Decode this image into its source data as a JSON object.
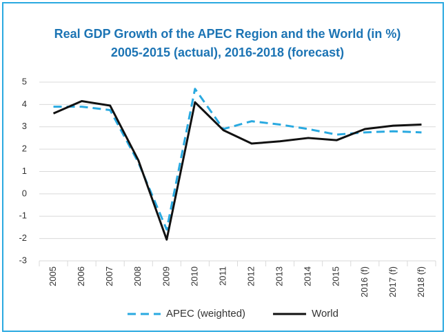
{
  "chart_data": {
    "type": "line",
    "title": "Real GDP Growth of the APEC Region and the World (in %)",
    "subtitle": "2005-2015 (actual), 2016-2018 (forecast)",
    "categories": [
      "2005",
      "2006",
      "2007",
      "2008",
      "2009",
      "2010",
      "2011",
      "2012",
      "2013",
      "2014",
      "2015",
      "2016 (f)",
      "2017 (f)",
      "2018 (f)"
    ],
    "series": [
      {
        "name": "APEC (weighted)",
        "color": "#29a9e0",
        "dashed": true,
        "values": [
          3.9,
          3.9,
          3.75,
          1.4,
          -1.6,
          4.7,
          2.9,
          3.25,
          3.1,
          2.9,
          2.65,
          2.75,
          2.8,
          2.75
        ]
      },
      {
        "name": "World",
        "color": "#111111",
        "dashed": false,
        "values": [
          3.6,
          4.15,
          3.95,
          1.5,
          -2.05,
          4.1,
          2.85,
          2.25,
          2.35,
          2.5,
          2.4,
          2.9,
          3.05,
          3.1
        ]
      }
    ],
    "ylim": [
      -3,
      5
    ],
    "yticks": [
      -3,
      -2,
      -1,
      0,
      1,
      2,
      3,
      4,
      5
    ],
    "grid": true,
    "legend": "bottom"
  }
}
